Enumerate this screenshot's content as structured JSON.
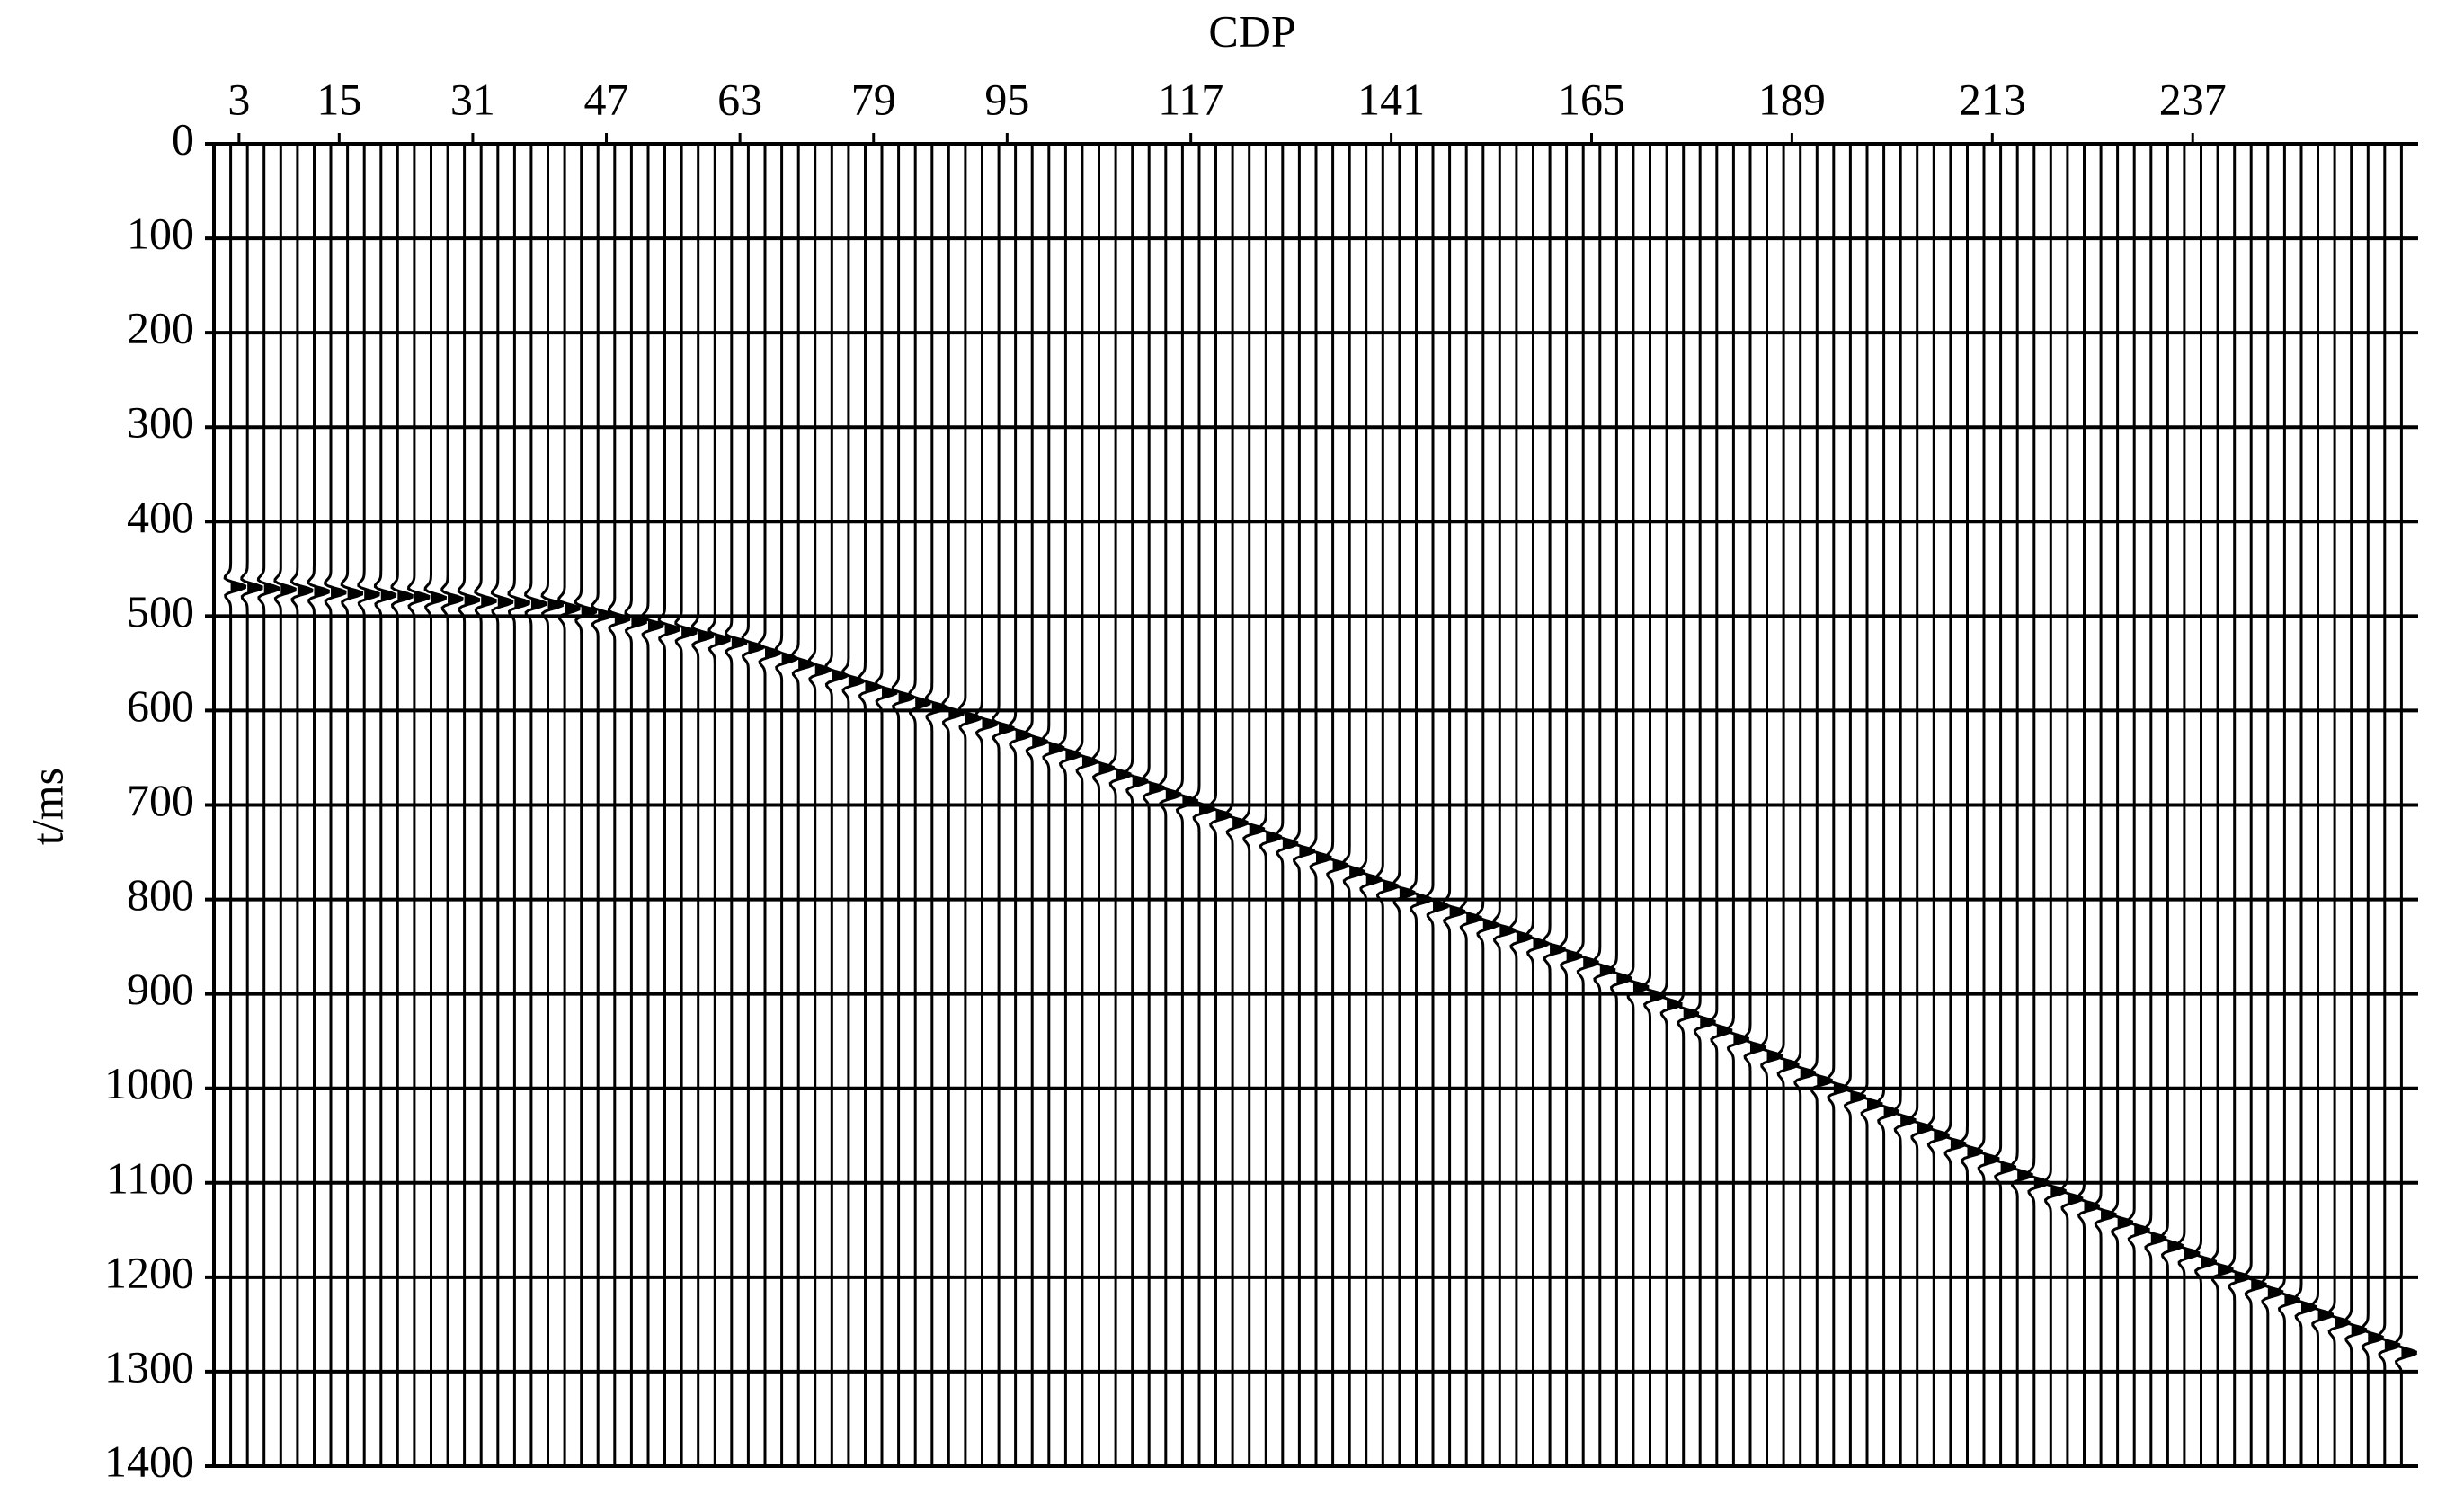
{
  "chart_data": {
    "type": "wiggle",
    "xlabel": "CDP",
    "ylabel": "t/ms",
    "xlim": [
      0,
      264
    ],
    "xticks": [
      3,
      15,
      31,
      47,
      63,
      79,
      95,
      117,
      141,
      165,
      189,
      213,
      237
    ],
    "ylim": [
      0,
      1400
    ],
    "y_inverted": true,
    "yticks": [
      0,
      100,
      200,
      300,
      400,
      500,
      600,
      700,
      800,
      900,
      1000,
      1100,
      1200,
      1300,
      1400
    ],
    "grid": true,
    "color": "#000000",
    "x": [
      2,
      4,
      6,
      8,
      10,
      12,
      14,
      16,
      18,
      20,
      22,
      24,
      26,
      28,
      30,
      32,
      34,
      36,
      38,
      40,
      42,
      44,
      46,
      48,
      50,
      52,
      54,
      56,
      58,
      60,
      62,
      64,
      66,
      68,
      70,
      72,
      74,
      76,
      78,
      80,
      82,
      84,
      86,
      88,
      90,
      92,
      94,
      96,
      98,
      100,
      102,
      104,
      106,
      108,
      110,
      112,
      114,
      116,
      118,
      120,
      122,
      124,
      126,
      128,
      130,
      132,
      134,
      136,
      138,
      140,
      142,
      144,
      146,
      148,
      150,
      152,
      154,
      156,
      158,
      160,
      162,
      164,
      166,
      168,
      170,
      172,
      174,
      176,
      178,
      180,
      182,
      184,
      186,
      188,
      190,
      192,
      194,
      196,
      198,
      200,
      202,
      204,
      206,
      208,
      210,
      212,
      214,
      216,
      218,
      220,
      222,
      224,
      226,
      228,
      230,
      232,
      234,
      236,
      238,
      240,
      242,
      244,
      246,
      248,
      250,
      252,
      254,
      256,
      258,
      260,
      262
    ],
    "values": [
      469,
      470,
      471,
      472,
      473,
      474,
      475,
      476,
      477,
      478,
      479,
      480,
      481,
      482,
      483,
      484,
      485,
      486,
      487,
      488,
      492,
      495,
      499,
      503,
      506,
      510,
      514,
      517,
      521,
      525,
      528,
      533,
      539,
      545,
      551,
      557,
      563,
      569,
      575,
      581,
      586,
      592,
      597,
      603,
      608,
      614,
      619,
      626,
      633,
      640,
      647,
      654,
      661,
      668,
      675,
      682,
      689,
      696,
      704,
      711,
      719,
      726,
      734,
      741,
      749,
      756,
      764,
      771,
      779,
      786,
      793,
      800,
      807,
      813,
      820,
      827,
      833,
      840,
      847,
      853,
      860,
      867,
      875,
      884,
      893,
      902,
      911,
      921,
      930,
      939,
      948,
      957,
      966,
      975,
      984,
      992,
      1000,
      1009,
      1017,
      1025,
      1034,
      1042,
      1050,
      1059,
      1067,
      1075,
      1084,
      1092,
      1100,
      1109,
      1117,
      1125,
      1134,
      1142,
      1150,
      1159,
      1167,
      1175,
      1184,
      1192,
      1200,
      1208,
      1216,
      1224,
      1232,
      1240,
      1248,
      1256,
      1264,
      1272,
      1280
    ]
  }
}
